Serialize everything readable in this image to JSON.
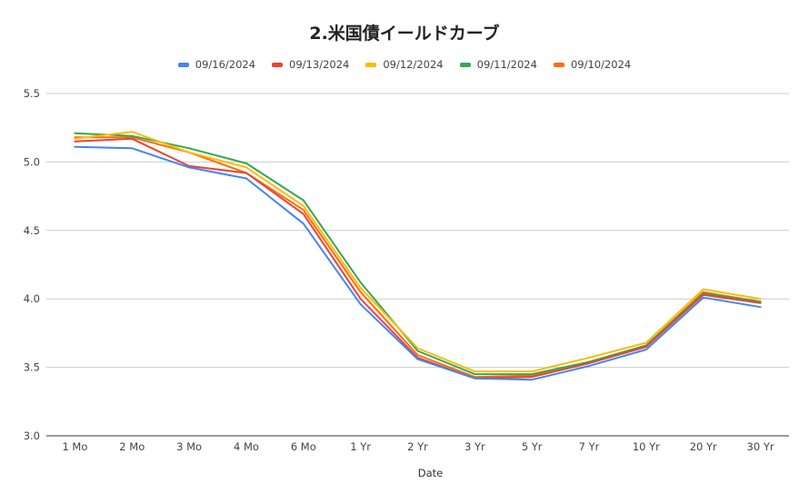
{
  "chart_data": {
    "type": "line",
    "title": "2.米国債イールドカーブ",
    "xlabel": "Date",
    "ylabel": "",
    "ylim": [
      3.0,
      5.5
    ],
    "yticks": [
      "3.0",
      "3.5",
      "4.0",
      "4.5",
      "5.0",
      "5.5"
    ],
    "grid": true,
    "legend_position": "top",
    "categories": [
      "1 Mo",
      "2 Mo",
      "3 Mo",
      "4 Mo",
      "6 Mo",
      "1 Yr",
      "2 Yr",
      "3 Yr",
      "5 Yr",
      "7 Yr",
      "10 Yr",
      "20 Yr",
      "30 Yr"
    ],
    "series": [
      {
        "name": "09/16/2024",
        "color": "#4285F4",
        "values": [
          5.11,
          5.1,
          4.96,
          4.88,
          4.55,
          3.96,
          3.56,
          3.42,
          3.41,
          3.51,
          3.63,
          4.01,
          3.94
        ]
      },
      {
        "name": "09/13/2024",
        "color": "#EA4335",
        "values": [
          5.15,
          5.17,
          4.97,
          4.92,
          4.62,
          4.0,
          3.57,
          3.42,
          3.43,
          3.53,
          3.65,
          4.03,
          3.97
        ]
      },
      {
        "name": "09/12/2024",
        "color": "#FBBC04",
        "values": [
          5.17,
          5.22,
          5.07,
          4.96,
          4.68,
          4.08,
          3.64,
          3.47,
          3.47,
          3.57,
          3.68,
          4.07,
          4.0
        ]
      },
      {
        "name": "09/11/2024",
        "color": "#34A853",
        "values": [
          5.21,
          5.19,
          5.1,
          4.99,
          4.72,
          4.12,
          3.62,
          3.45,
          3.45,
          3.54,
          3.66,
          4.04,
          3.98
        ]
      },
      {
        "name": "09/10/2024",
        "color": "#FF6D01",
        "values": [
          5.18,
          5.18,
          5.07,
          4.92,
          4.65,
          4.05,
          3.59,
          3.43,
          3.44,
          3.54,
          3.66,
          4.05,
          3.98
        ]
      }
    ]
  }
}
